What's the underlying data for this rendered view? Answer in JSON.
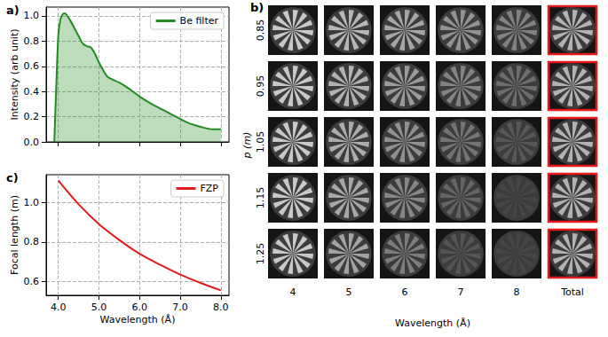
{
  "chart_data": [
    {
      "type": "area",
      "title": "a)",
      "ylabel": "Intensity (arb unit)",
      "x": [
        3.9,
        3.95,
        4.0,
        4.05,
        4.1,
        4.15,
        4.2,
        4.3,
        4.4,
        4.5,
        4.6,
        4.7,
        4.8,
        4.9,
        5.0,
        5.1,
        5.2,
        5.3,
        5.5,
        5.75,
        6.0,
        6.3,
        6.6,
        6.9,
        7.2,
        7.5,
        7.8,
        8.0
      ],
      "series": [
        {
          "name": "Be filter",
          "color": "#228b22",
          "values": [
            0.0,
            0.45,
            0.85,
            0.97,
            1.01,
            1.02,
            1.01,
            0.96,
            0.9,
            0.84,
            0.78,
            0.76,
            0.75,
            0.7,
            0.63,
            0.57,
            0.52,
            0.5,
            0.47,
            0.42,
            0.36,
            0.3,
            0.25,
            0.2,
            0.15,
            0.12,
            0.1,
            0.1
          ]
        }
      ],
      "xlim": [
        3.7,
        8.2
      ],
      "xticks": [
        4,
        5,
        6,
        7,
        8
      ],
      "ylim": [
        0,
        1.07
      ],
      "yticks": [
        {
          "value": 0,
          "label": "0.0"
        },
        {
          "value": 0.2,
          "label": "0.2"
        },
        {
          "value": 0.4,
          "label": "0.4"
        },
        {
          "value": 0.6,
          "label": "0.6"
        },
        {
          "value": 0.8,
          "label": "0.8"
        },
        {
          "value": 1,
          "label": "1.0"
        }
      ],
      "grid": true,
      "legend": "upper right",
      "tick_labels": "y"
    },
    {
      "type": "line",
      "title": "c)",
      "xlabel": "Wavelength (Å)",
      "ylabel": "Focal length (m)",
      "x": [
        4.0,
        4.5,
        5.0,
        5.5,
        6.0,
        6.5,
        7.0,
        7.5,
        8.0
      ],
      "series": [
        {
          "name": "FZP",
          "color": "#e31a1c",
          "values": [
            1.11,
            0.99,
            0.89,
            0.81,
            0.74,
            0.685,
            0.635,
            0.593,
            0.555
          ]
        }
      ],
      "xlim": [
        3.7,
        8.2
      ],
      "xticks": [
        {
          "value": 4,
          "label": "4.0"
        },
        {
          "value": 5,
          "label": "5.0"
        },
        {
          "value": 6,
          "label": "6.0"
        },
        {
          "value": 7,
          "label": "7.0"
        },
        {
          "value": 8,
          "label": "8.0"
        }
      ],
      "ylim": [
        0.53,
        1.14
      ],
      "yticks": [
        {
          "value": 0.6,
          "label": "0.6"
        },
        {
          "value": 0.8,
          "label": "0.8"
        },
        {
          "value": 1,
          "label": "1.0"
        }
      ],
      "grid": true,
      "legend": "upper right"
    }
  ],
  "image_grid": {
    "label": "b)",
    "ylabel": "p (m)",
    "xlabel": "Wavelength (Å)",
    "rows": [
      "0.85",
      "0.95",
      "1.05",
      "1.15",
      "1.25"
    ],
    "columns": [
      "4",
      "5",
      "6",
      "7",
      "8",
      "Total"
    ],
    "highlight": {
      "column": "Total",
      "color": "#e31a1c"
    }
  }
}
